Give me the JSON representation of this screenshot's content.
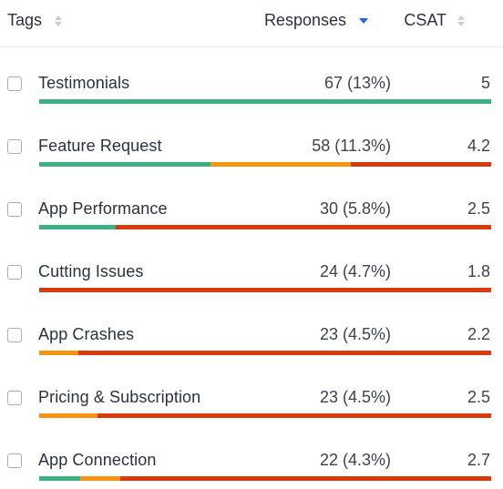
{
  "header": {
    "tags_label": "Tags",
    "responses_label": "Responses",
    "csat_label": "CSAT",
    "sort_active": "responses-desc"
  },
  "colors": {
    "positive": "#3bb080",
    "neutral": "#f7930f",
    "negative": "#d93a0b",
    "sort_active": "#1e68d8"
  },
  "rows": [
    {
      "tag": "Testimonials",
      "responses": "67 (13%)",
      "csat": "5",
      "sentiment": [
        {
          "type": "positive",
          "fraction": 1.0
        }
      ]
    },
    {
      "tag": "Feature Request",
      "responses": "58 (11.3%)",
      "csat": "4.2",
      "sentiment": [
        {
          "type": "positive",
          "fraction": 0.38
        },
        {
          "type": "neutral",
          "fraction": 0.31
        },
        {
          "type": "negative",
          "fraction": 0.31
        }
      ]
    },
    {
      "tag": "App Performance",
      "responses": "30 (5.8%)",
      "csat": "2.5",
      "sentiment": [
        {
          "type": "positive",
          "fraction": 0.17
        },
        {
          "type": "negative",
          "fraction": 0.83
        }
      ]
    },
    {
      "tag": "Cutting Issues",
      "responses": "24 (4.7%)",
      "csat": "1.8",
      "sentiment": [
        {
          "type": "negative",
          "fraction": 1.0
        }
      ]
    },
    {
      "tag": "App Crashes",
      "responses": "23 (4.5%)",
      "csat": "2.2",
      "sentiment": [
        {
          "type": "neutral",
          "fraction": 0.087
        },
        {
          "type": "negative",
          "fraction": 0.913
        }
      ]
    },
    {
      "tag": "Pricing & Subscription",
      "responses": "23 (4.5%)",
      "csat": "2.5",
      "sentiment": [
        {
          "type": "neutral",
          "fraction": 0.13
        },
        {
          "type": "negative",
          "fraction": 0.87
        }
      ]
    },
    {
      "tag": "App Connection",
      "responses": "22 (4.3%)",
      "csat": "2.7",
      "sentiment": [
        {
          "type": "positive",
          "fraction": 0.09
        },
        {
          "type": "neutral",
          "fraction": 0.09
        },
        {
          "type": "negative",
          "fraction": 0.82
        }
      ]
    }
  ]
}
